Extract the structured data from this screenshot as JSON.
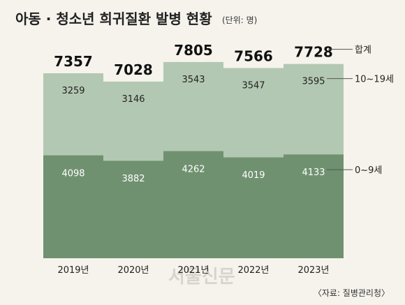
{
  "chart_data": {
    "type": "bar",
    "stacked": true,
    "title": "아동 · 청소년 희귀질환 발병 현황",
    "unit": "(단위: 명)",
    "categories": [
      "2019년",
      "2020년",
      "2021년",
      "2022년",
      "2023년"
    ],
    "series": [
      {
        "name": "0~9세",
        "values": [
          4098,
          3882,
          4262,
          4019,
          4133
        ],
        "color": "#6f9170"
      },
      {
        "name": "10~19세",
        "values": [
          3259,
          3146,
          3543,
          3547,
          3595
        ],
        "color": "#b3c8b2"
      }
    ],
    "totals": [
      7357,
      7028,
      7805,
      7566,
      7728
    ],
    "total_label": "합계",
    "source": "〈자료: 질병관리청〉",
    "watermark": "서울신문",
    "grid": false,
    "colors": {
      "background": "#f5f3ec",
      "leader_line": "#555555"
    }
  }
}
